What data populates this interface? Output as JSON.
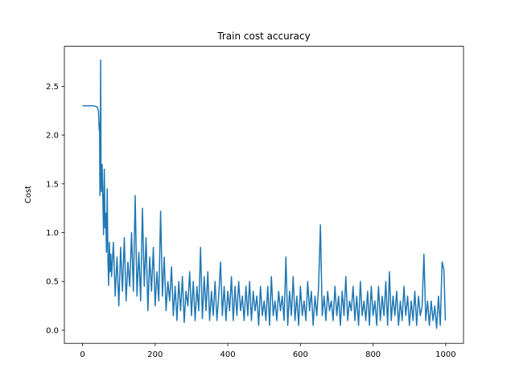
{
  "chart_data": {
    "type": "line",
    "title": "Train cost accuracy",
    "y_label": "Cost",
    "x": [
      0,
      10,
      20,
      30,
      40,
      44,
      46,
      47,
      48,
      49,
      50,
      51,
      52,
      54,
      56,
      58,
      60,
      62,
      64,
      66,
      68,
      70,
      72,
      74,
      76,
      78,
      80,
      85,
      90,
      95,
      100,
      105,
      110,
      115,
      120,
      125,
      130,
      135,
      140,
      145,
      150,
      155,
      160,
      165,
      170,
      175,
      180,
      185,
      190,
      195,
      200,
      205,
      210,
      215,
      220,
      225,
      230,
      235,
      240,
      245,
      250,
      255,
      260,
      265,
      270,
      275,
      280,
      285,
      290,
      295,
      300,
      305,
      310,
      315,
      320,
      325,
      330,
      335,
      340,
      345,
      350,
      355,
      360,
      365,
      370,
      375,
      380,
      385,
      390,
      395,
      400,
      405,
      410,
      415,
      420,
      425,
      430,
      435,
      440,
      445,
      450,
      455,
      460,
      465,
      470,
      475,
      480,
      485,
      490,
      495,
      500,
      505,
      510,
      515,
      520,
      525,
      530,
      535,
      540,
      545,
      550,
      555,
      560,
      565,
      570,
      575,
      580,
      585,
      590,
      595,
      600,
      605,
      610,
      615,
      620,
      625,
      630,
      635,
      640,
      645,
      650,
      655,
      660,
      665,
      670,
      675,
      680,
      685,
      690,
      695,
      700,
      705,
      710,
      715,
      720,
      725,
      730,
      735,
      740,
      745,
      750,
      755,
      760,
      765,
      770,
      775,
      780,
      785,
      790,
      795,
      800,
      805,
      810,
      815,
      820,
      825,
      830,
      835,
      840,
      845,
      850,
      855,
      860,
      865,
      870,
      875,
      880,
      885,
      890,
      895,
      900,
      905,
      910,
      915,
      920,
      925,
      930,
      935,
      940,
      945,
      950,
      955,
      960,
      965,
      970,
      975,
      980,
      985,
      990,
      995,
      999
    ],
    "series": [
      {
        "name": "cost",
        "color": "#1f77b4",
        "values": [
          2.3,
          2.3,
          2.3,
          2.3,
          2.29,
          2.25,
          2.05,
          2.12,
          1.38,
          1.9,
          2.77,
          1.55,
          1.42,
          1.7,
          1.35,
          0.98,
          1.65,
          1.05,
          1.2,
          0.8,
          1.45,
          0.72,
          0.46,
          0.9,
          0.6,
          0.78,
          0.55,
          0.9,
          0.35,
          0.75,
          0.25,
          0.85,
          0.4,
          0.95,
          0.3,
          0.7,
          0.45,
          1.0,
          0.4,
          1.38,
          0.35,
          0.8,
          0.3,
          1.25,
          0.45,
          0.95,
          0.2,
          0.75,
          0.4,
          0.85,
          0.25,
          0.6,
          0.3,
          1.22,
          0.35,
          0.75,
          0.2,
          0.5,
          0.3,
          0.65,
          0.15,
          0.45,
          0.1,
          0.5,
          0.2,
          0.55,
          0.08,
          0.4,
          0.25,
          0.6,
          0.15,
          0.5,
          0.1,
          0.45,
          0.2,
          0.85,
          0.12,
          0.55,
          0.2,
          0.6,
          0.1,
          0.4,
          0.15,
          0.5,
          0.1,
          0.35,
          0.7,
          0.15,
          0.45,
          0.1,
          0.4,
          0.2,
          0.55,
          0.1,
          0.45,
          0.15,
          0.5,
          0.2,
          0.35,
          0.1,
          0.45,
          0.15,
          0.5,
          0.1,
          0.4,
          0.2,
          0.35,
          0.05,
          0.45,
          0.15,
          0.3,
          0.1,
          0.45,
          0.05,
          0.55,
          0.15,
          0.3,
          0.1,
          0.4,
          0.2,
          0.35,
          0.1,
          0.75,
          0.05,
          0.4,
          0.15,
          0.55,
          0.1,
          0.35,
          0.05,
          0.45,
          0.15,
          0.3,
          0.1,
          0.5,
          0.2,
          0.4,
          0.05,
          0.35,
          0.15,
          0.45,
          1.08,
          0.15,
          0.35,
          0.1,
          0.4,
          0.2,
          0.3,
          0.1,
          0.45,
          0.15,
          0.35,
          0.05,
          0.4,
          0.15,
          0.55,
          0.1,
          0.3,
          0.2,
          0.45,
          0.1,
          0.35,
          0.05,
          0.5,
          0.15,
          0.3,
          0.1,
          0.4,
          0.05,
          0.45,
          0.15,
          0.3,
          0.05,
          0.45,
          0.1,
          0.35,
          0.15,
          0.5,
          0.05,
          0.6,
          0.1,
          0.35,
          0.15,
          0.4,
          0.05,
          0.3,
          0.1,
          0.45,
          0.15,
          0.35,
          0.05,
          0.3,
          0.1,
          0.4,
          0.05,
          0.35,
          0.15,
          0.25,
          0.78,
          0.1,
          0.3,
          0.05,
          0.3,
          0.1,
          0.25,
          0.02,
          0.35,
          0.05,
          0.7,
          0.62,
          0.1
        ]
      }
    ],
    "xlim": [
      -49.95,
      1048.95
    ],
    "xticks": [
      0,
      200,
      400,
      600,
      800,
      1000
    ],
    "ylim": [
      -0.134,
      2.91
    ],
    "yticks": [
      {
        "value": 0,
        "label": "0.0"
      },
      0.5,
      {
        "value": 1,
        "label": "1.0"
      },
      1.5,
      {
        "value": 2,
        "label": "2.0"
      },
      2.5
    ],
    "grid": false
  }
}
